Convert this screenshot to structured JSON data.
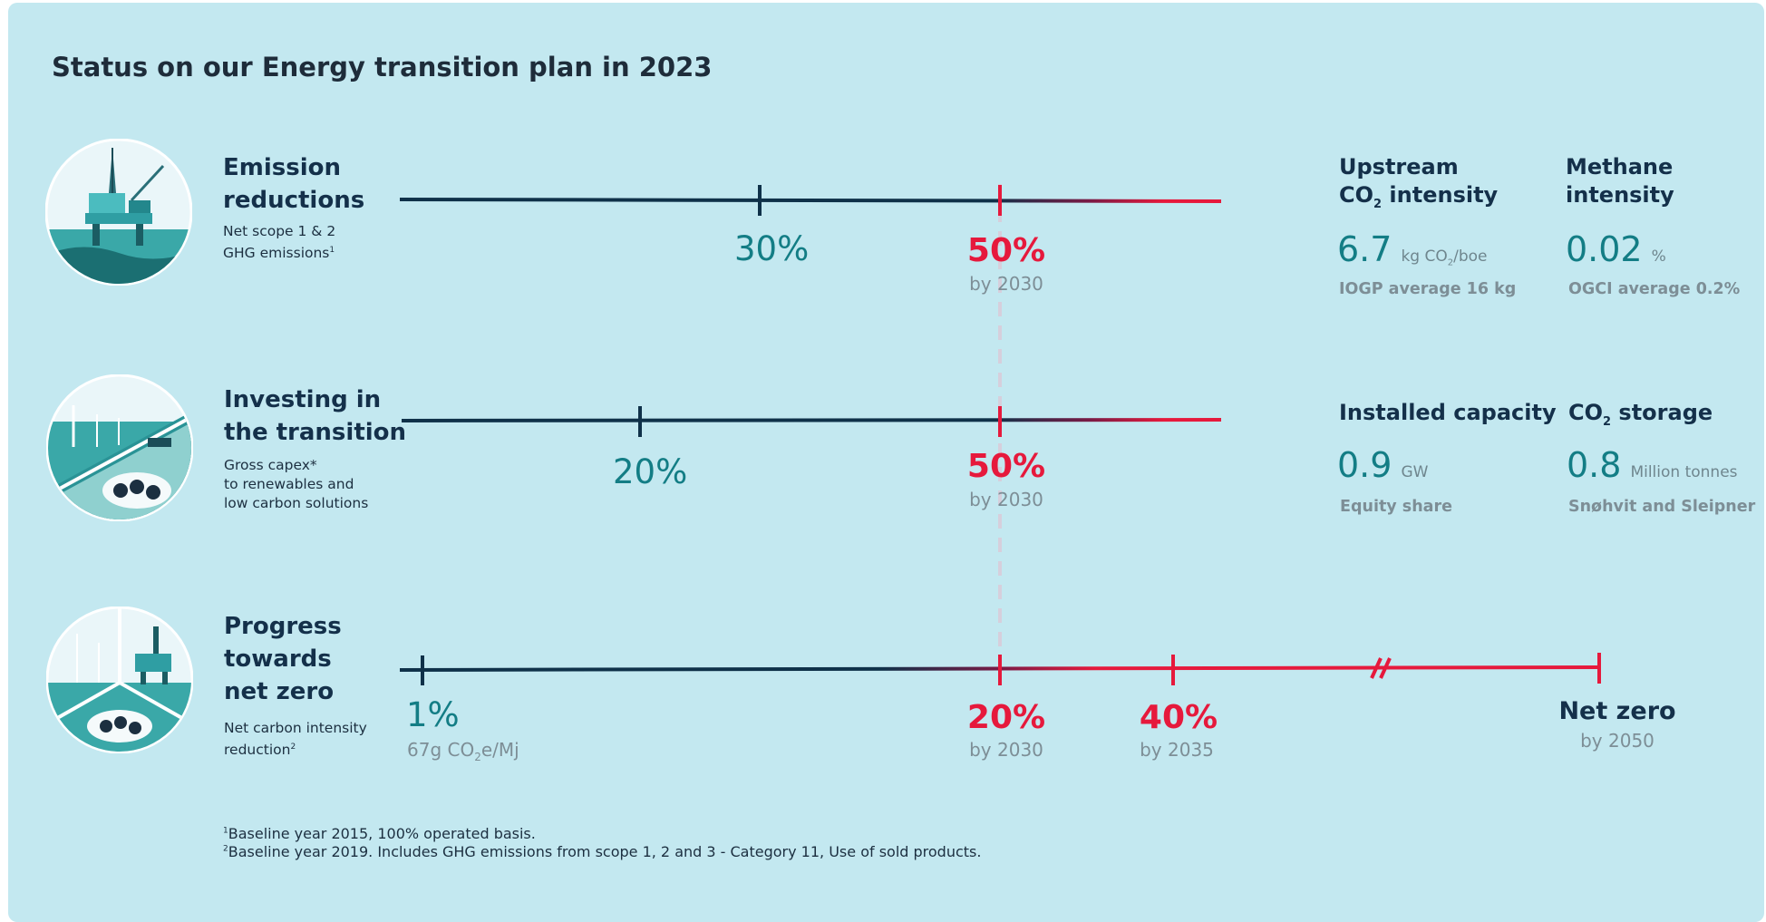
{
  "title": "Status on our Energy transition plan in 2023",
  "rows": [
    {
      "title_lines": [
        "Emission",
        "reductions"
      ],
      "subtitle_lines": [
        "Net scope 1 & 2",
        "GHG emissions"
      ],
      "subtitle_sup": "1",
      "current": "30%",
      "target": "50%",
      "target_by": "by 2030"
    },
    {
      "title_lines": [
        "Investing in",
        "the transition"
      ],
      "subtitle_lines": [
        "Gross capex*",
        "to renewables and",
        "low carbon solutions"
      ],
      "current": "20%",
      "target": "50%",
      "target_by": "by 2030"
    },
    {
      "title_lines": [
        "Progress",
        "towards",
        "net zero"
      ],
      "subtitle_lines": [
        "Net carbon intensity",
        "reduction"
      ],
      "subtitle_sup": "2",
      "current": "1%",
      "current_sub_a": "67g CO",
      "current_sub_b": "e/Mj",
      "target1": "20%",
      "target1_by": "by 2030",
      "target2": "40%",
      "target2_by": "by 2035",
      "final": "Net zero",
      "final_by": "by 2050"
    }
  ],
  "kpis": [
    {
      "title_a": "Upstream",
      "title_b1": "CO",
      "title_b2": " intensity",
      "value": "6.7",
      "unit_a": "kg CO",
      "unit_b": "/boe",
      "note": "IOGP average 16 kg"
    },
    {
      "title_a": "Methane",
      "title_b": "intensity",
      "value": "0.02",
      "unit": "%",
      "note": "OGCI average 0.2%"
    },
    {
      "title": "Installed capacity",
      "value": "0.9",
      "unit": "GW",
      "note": "Equity share"
    },
    {
      "title_a": "CO",
      "title_b": " storage",
      "value": "0.8",
      "unit": "Million tonnes",
      "note": "Snøhvit and Sleipner"
    }
  ],
  "footnotes": [
    "Baseline year 2015, 100% operated basis.",
    "Baseline year 2019. Includes GHG emissions from scope 1, 2 and 3 - Category 11, Use of sold products."
  ],
  "footnote_marks": [
    "1",
    "2"
  ],
  "subscript_2": "2",
  "colors": {
    "background": "#c3e8f0",
    "navy": "#14304a",
    "teal": "#137d85",
    "red": "#e6193c"
  },
  "icons": [
    "offshore-platform-icon",
    "wind-farm-ccs-icon",
    "platform-wind-ccs-icon"
  ]
}
